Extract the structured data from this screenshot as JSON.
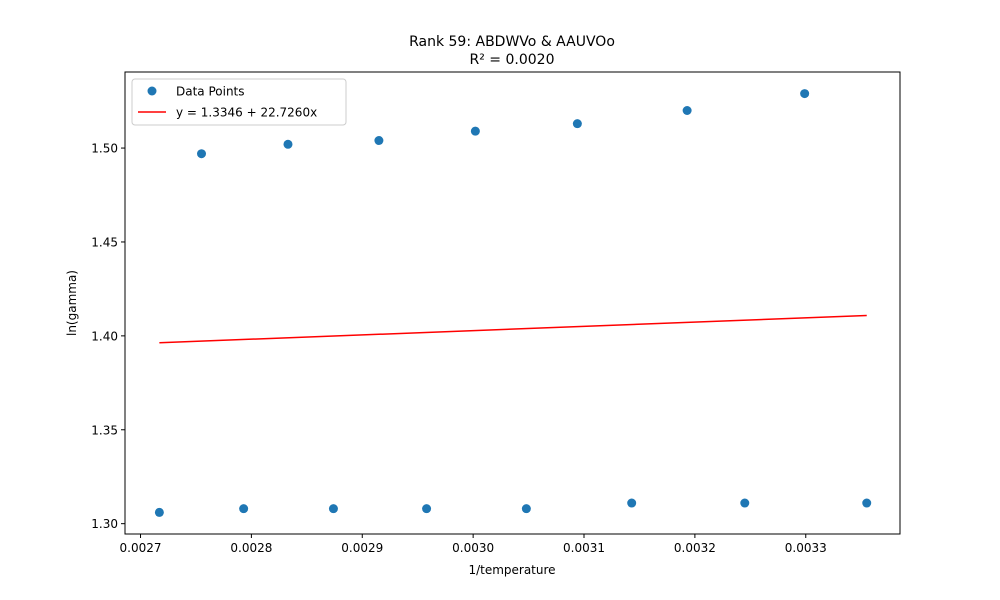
{
  "chart_data": {
    "type": "scatter",
    "title": "Rank 59: ABDWVo & AAUVOo",
    "subtitle": "R² = 0.0020",
    "xlabel": "1/temperature",
    "ylabel": "ln(gamma)",
    "xlim": [
      0.002686,
      0.003385
    ],
    "ylim": [
      1.2945,
      1.5405
    ],
    "xticks": [
      "0.0027",
      "0.0028",
      "0.0029",
      "0.0030",
      "0.0031",
      "0.0032",
      "0.0033"
    ],
    "xtick_values": [
      0.0027,
      0.0028,
      0.0029,
      0.003,
      0.0031,
      0.0032,
      0.0033
    ],
    "yticks": [
      "1.30",
      "1.35",
      "1.40",
      "1.45",
      "1.50"
    ],
    "ytick_values": [
      1.3,
      1.35,
      1.4,
      1.45,
      1.5
    ],
    "grid": false,
    "legend_position": "top-left",
    "series": [
      {
        "name": "Data Points",
        "kind": "scatter",
        "color": "#1f77b4",
        "points": [
          [
            0.002717,
            1.306
          ],
          [
            0.002755,
            1.497
          ],
          [
            0.002793,
            1.308
          ],
          [
            0.002833,
            1.502
          ],
          [
            0.002874,
            1.308
          ],
          [
            0.002915,
            1.504
          ],
          [
            0.002958,
            1.308
          ],
          [
            0.003002,
            1.509
          ],
          [
            0.003048,
            1.308
          ],
          [
            0.003094,
            1.513
          ],
          [
            0.003143,
            1.311
          ],
          [
            0.003193,
            1.52
          ],
          [
            0.003245,
            1.311
          ],
          [
            0.003299,
            1.529
          ],
          [
            0.003355,
            1.311
          ]
        ]
      },
      {
        "name": "y = 1.3346 + 22.7260x",
        "kind": "line",
        "color": "#ff0000",
        "intercept": 1.3346,
        "slope": 22.726,
        "x_range": [
          0.002717,
          0.003355
        ]
      }
    ]
  }
}
